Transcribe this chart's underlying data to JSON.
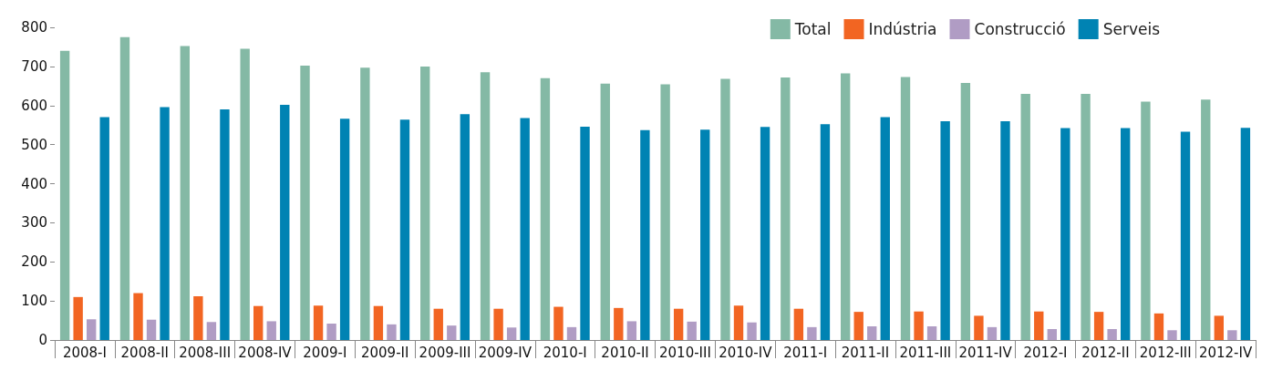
{
  "chart_data": {
    "type": "bar",
    "categories": [
      "2008-I",
      "2008-II",
      "2008-III",
      "2008-IV",
      "2009-I",
      "2009-II",
      "2009-III",
      "2009-IV",
      "2010-I",
      "2010-II",
      "2010-III",
      "2010-IV",
      "2011-I",
      "2011-II",
      "2011-III",
      "2011-IV",
      "2012-I",
      "2012-II",
      "2012-III",
      "2012-IV"
    ],
    "series": [
      {
        "name": "Total",
        "color": "#84b9a5",
        "values": [
          740,
          775,
          752,
          745,
          702,
          697,
          700,
          685,
          670,
          656,
          654,
          668,
          672,
          682,
          673,
          658,
          630,
          630,
          610,
          615
        ]
      },
      {
        "name": "Indústria",
        "color": "#f26522",
        "values": [
          110,
          120,
          112,
          87,
          88,
          87,
          80,
          80,
          85,
          82,
          80,
          88,
          80,
          72,
          73,
          62,
          73,
          72,
          68,
          62
        ]
      },
      {
        "name": "Construcció",
        "color": "#b09cc4",
        "values": [
          53,
          52,
          46,
          48,
          42,
          40,
          37,
          32,
          33,
          48,
          47,
          45,
          33,
          35,
          35,
          33,
          28,
          28,
          25,
          25
        ]
      },
      {
        "name": "Serveis",
        "color": "#0083b3",
        "values": [
          570,
          596,
          590,
          602,
          566,
          564,
          578,
          568,
          546,
          537,
          538,
          545,
          552,
          570,
          560,
          560,
          542,
          542,
          533,
          543
        ]
      }
    ],
    "ylim": [
      0,
      800
    ],
    "yticks": [
      0,
      100,
      200,
      300,
      400,
      500,
      600,
      700,
      800
    ],
    "grid": false,
    "legend": "top right"
  }
}
